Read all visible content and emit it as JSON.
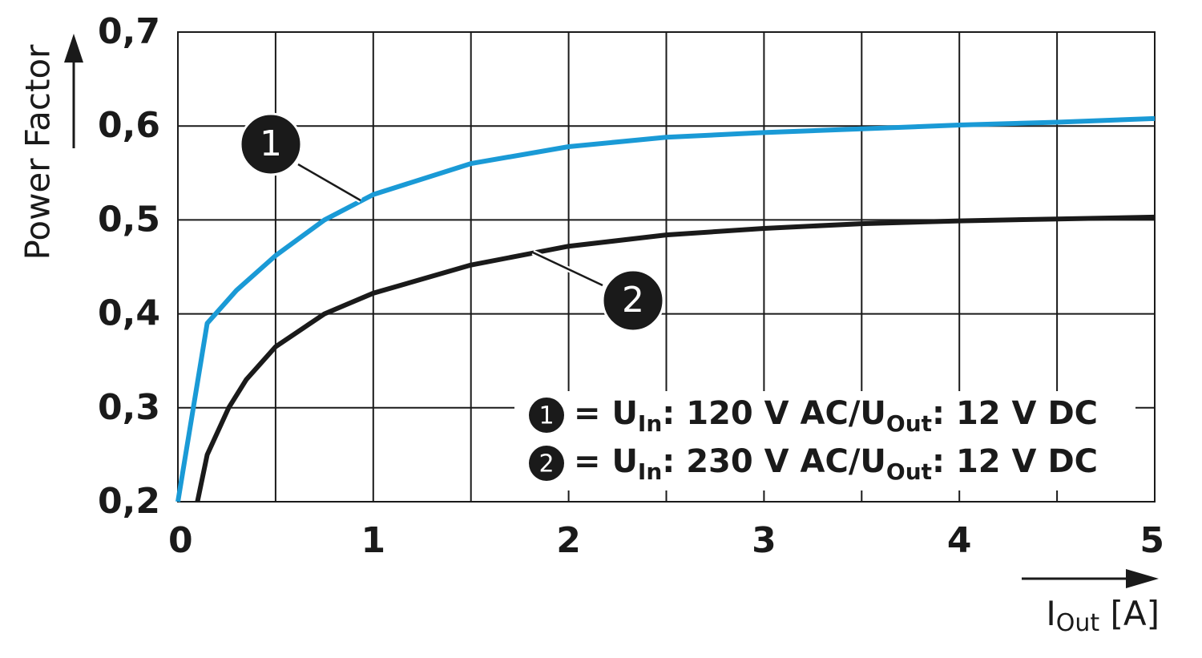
{
  "chart_data": {
    "type": "line",
    "ylabel": "Power Factor",
    "xlabel_parts": [
      "I",
      "Out",
      " [A]"
    ],
    "xlim": [
      0,
      5
    ],
    "ylim": [
      0.2,
      0.7
    ],
    "xticks": [
      0,
      1,
      2,
      3,
      4,
      5
    ],
    "xgrid": [
      0.5,
      1.5,
      2.5,
      3.5,
      4.5
    ],
    "yticks": [
      {
        "value": 0.2,
        "label": "0,2"
      },
      {
        "value": 0.3,
        "label": "0,3"
      },
      {
        "value": 0.4,
        "label": "0,4"
      },
      {
        "value": 0.5,
        "label": "0,5"
      },
      {
        "value": 0.6,
        "label": "0,6"
      },
      {
        "value": 0.7,
        "label": "0,7"
      }
    ],
    "grid": true,
    "series": [
      {
        "name": "1",
        "color": "#1a9ad6",
        "x": [
          0,
          0.15,
          0.3,
          0.5,
          0.75,
          1,
          1.5,
          2,
          2.5,
          3,
          3.5,
          4,
          4.5,
          5
        ],
        "values": [
          0.2,
          0.39,
          0.425,
          0.462,
          0.5,
          0.527,
          0.56,
          0.578,
          0.588,
          0.593,
          0.597,
          0.601,
          0.604,
          0.608
        ],
        "legend_parts": [
          "= U",
          "In",
          ": 120 V AC/U",
          "Out",
          ": 12 V DC"
        ]
      },
      {
        "name": "2",
        "color": "#1a1a1a",
        "x": [
          0.1,
          0.15,
          0.26,
          0.35,
          0.5,
          0.75,
          1,
          1.5,
          2,
          2.5,
          3,
          3.5,
          4,
          4.5,
          5
        ],
        "values": [
          0.2,
          0.25,
          0.3,
          0.33,
          0.365,
          0.4,
          0.422,
          0.452,
          0.472,
          0.484,
          0.491,
          0.496,
          0.499,
          0.501,
          0.503
        ],
        "legend_parts": [
          "= U",
          "In",
          ": 230 V AC/U",
          "Out",
          ": 12 V DC"
        ]
      }
    ]
  }
}
